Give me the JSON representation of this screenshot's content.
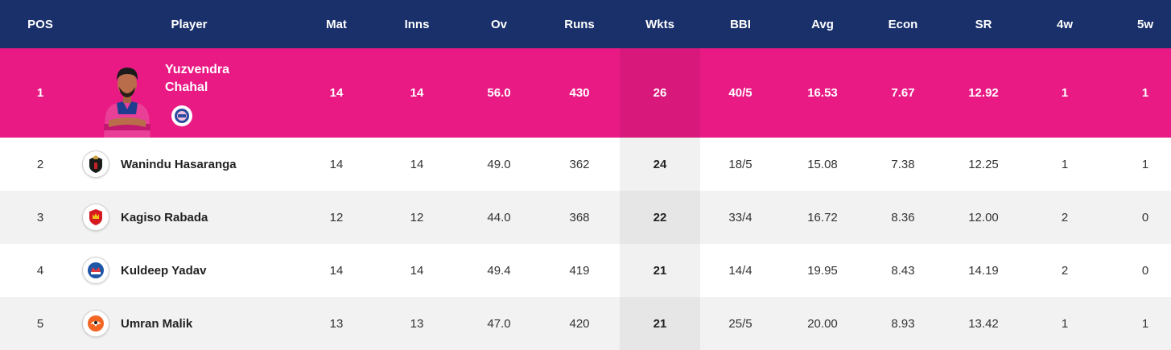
{
  "header": {
    "pos": "POS",
    "player": "Player",
    "mat": "Mat",
    "inns": "Inns",
    "ov": "Ov",
    "runs": "Runs",
    "wkts": "Wkts",
    "bbi": "BBI",
    "avg": "Avg",
    "econ": "Econ",
    "sr": "SR",
    "four_w": "4w",
    "five_w": "5w"
  },
  "colors": {
    "header_bg": "#19306b",
    "leader_bg": "#ea1a85",
    "row_alt_bg": "#f2f2f2"
  },
  "leader": {
    "pos": "1",
    "name_line1": "Yuzvendra",
    "name_line2": "Chahal",
    "team_icon": "rajasthan-royals-logo-icon",
    "mat": "14",
    "inns": "14",
    "ov": "56.0",
    "runs": "430",
    "wkts": "26",
    "bbi": "40/5",
    "avg": "16.53",
    "econ": "7.67",
    "sr": "12.92",
    "four_w": "1",
    "five_w": "1"
  },
  "rows": [
    {
      "pos": "2",
      "name": "Wanindu Hasaranga",
      "team_icon": "royal-challengers-logo-icon",
      "mat": "14",
      "inns": "14",
      "ov": "49.0",
      "runs": "362",
      "wkts": "24",
      "bbi": "18/5",
      "avg": "15.08",
      "econ": "7.38",
      "sr": "12.25",
      "four_w": "1",
      "five_w": "1"
    },
    {
      "pos": "3",
      "name": "Kagiso Rabada",
      "team_icon": "punjab-kings-logo-icon",
      "mat": "12",
      "inns": "12",
      "ov": "44.0",
      "runs": "368",
      "wkts": "22",
      "bbi": "33/4",
      "avg": "16.72",
      "econ": "8.36",
      "sr": "12.00",
      "four_w": "2",
      "five_w": "0"
    },
    {
      "pos": "4",
      "name": "Kuldeep Yadav",
      "team_icon": "delhi-capitals-logo-icon",
      "mat": "14",
      "inns": "14",
      "ov": "49.4",
      "runs": "419",
      "wkts": "21",
      "bbi": "14/4",
      "avg": "19.95",
      "econ": "8.43",
      "sr": "14.19",
      "four_w": "2",
      "five_w": "0"
    },
    {
      "pos": "5",
      "name": "Umran Malik",
      "team_icon": "sunrisers-logo-icon",
      "mat": "13",
      "inns": "13",
      "ov": "47.0",
      "runs": "420",
      "wkts": "21",
      "bbi": "25/5",
      "avg": "20.00",
      "econ": "8.93",
      "sr": "13.42",
      "four_w": "1",
      "five_w": "1"
    }
  ]
}
